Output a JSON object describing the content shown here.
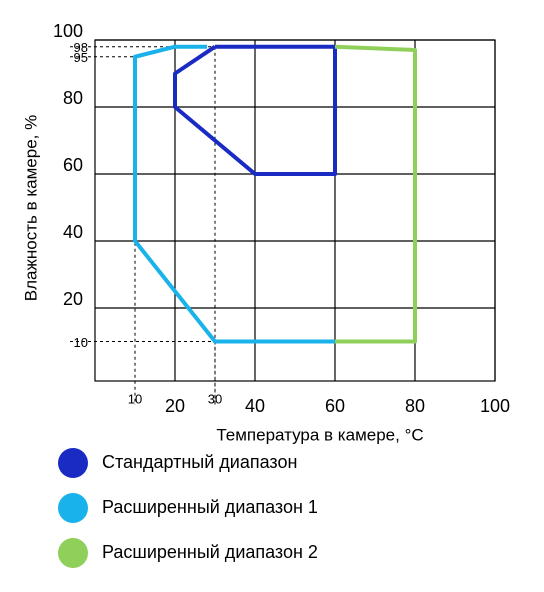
{
  "chart_data": {
    "type": "polygon",
    "xlabel": "Температура в камере, °C",
    "ylabel": "Влажность в камере, %",
    "xlim": [
      0,
      100
    ],
    "ylim": [
      0,
      100
    ],
    "xticks": [
      20,
      40,
      60,
      80,
      100
    ],
    "yticks": [
      20,
      40,
      60,
      80,
      100
    ],
    "xticks_minor": [
      10,
      30
    ],
    "yticks_minor": [
      10,
      95,
      98
    ],
    "grid": true,
    "guides": [
      [
        10,
        95
      ],
      [
        30,
        98
      ],
      [
        30,
        10
      ]
    ],
    "series": [
      {
        "name": "Стандартный диапазон",
        "color": "#1a2bc4",
        "x": [
          30,
          60,
          60,
          40,
          20,
          20,
          30
        ],
        "y": [
          98,
          98,
          60,
          60,
          80,
          90,
          98
        ]
      },
      {
        "name": "Расширенный диапазон 1",
        "color": "#1ab2ea",
        "x": [
          28,
          20,
          10,
          10,
          30,
          60
        ],
        "y": [
          98,
          98,
          95,
          40,
          10,
          10
        ]
      },
      {
        "name": "Расширенный диапазон 2",
        "color": "#8fd05a",
        "x": [
          60,
          80,
          80,
          60
        ],
        "y": [
          98,
          97,
          10,
          10
        ]
      }
    ]
  }
}
